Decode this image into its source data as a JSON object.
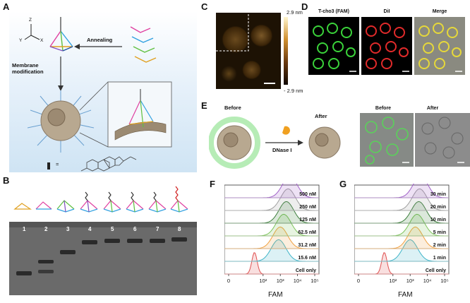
{
  "panels": {
    "A": {
      "letter": "A",
      "axes": {
        "z": "Z",
        "y": "Y",
        "x": "X"
      },
      "annealing": "Annealing",
      "membrane_modification": "Membrane modification",
      "equals": "="
    },
    "B": {
      "letter": "B",
      "lanes": [
        "1",
        "2",
        "3",
        "4",
        "5",
        "6",
        "7",
        "8"
      ]
    },
    "C": {
      "letter": "C",
      "scale_max": "2.9 nm",
      "scale_min": "- 2.9 nm"
    },
    "D": {
      "letter": "D",
      "channels": [
        "T-cho3 (FAM)",
        "DiI",
        "Merge"
      ]
    },
    "E": {
      "letter": "E",
      "before": "Before",
      "after": "After",
      "enzyme": "DNase I",
      "micro_before": "Before",
      "micro_after": "After"
    }
  },
  "chart_data": [
    {
      "panel": "F",
      "type": "line",
      "xlabel": "FAM",
      "x_ticks": [
        "0",
        "10²",
        "10³",
        "10⁴",
        "10⁵"
      ],
      "series": [
        {
          "name": "Cell only",
          "peak_log": 1.5,
          "color": "#e05050"
        },
        {
          "name": "15.6 nM",
          "peak_log": 2.9,
          "color": "#3fb4c8"
        },
        {
          "name": "31.2 nM",
          "peak_log": 3.0,
          "color": "#f0a040"
        },
        {
          "name": "62.5 nM",
          "peak_log": 3.2,
          "color": "#7cc35a"
        },
        {
          "name": "125 nM",
          "peak_log": 3.35,
          "color": "#3a7d3a"
        },
        {
          "name": "250 nM",
          "peak_log": 3.45,
          "color": "#9e9e9e"
        },
        {
          "name": "500 nM",
          "peak_log": 3.55,
          "color": "#a060c8"
        }
      ]
    },
    {
      "panel": "G",
      "type": "line",
      "xlabel": "FAM",
      "x_ticks": [
        "0",
        "10²",
        "10³",
        "10⁴",
        "10⁵"
      ],
      "series": [
        {
          "name": "Cell only",
          "peak_log": 1.5,
          "color": "#e05050"
        },
        {
          "name": "1 min",
          "peak_log": 3.0,
          "color": "#3fb4c8"
        },
        {
          "name": "2 min",
          "peak_log": 3.3,
          "color": "#f0a040"
        },
        {
          "name": "5 min",
          "peak_log": 3.4,
          "color": "#7cc35a"
        },
        {
          "name": "10 min",
          "peak_log": 3.5,
          "color": "#3a7d3a"
        },
        {
          "name": "20 min",
          "peak_log": 3.55,
          "color": "#9e9e9e"
        },
        {
          "name": "30 min",
          "peak_log": 3.6,
          "color": "#a060c8"
        }
      ]
    }
  ]
}
